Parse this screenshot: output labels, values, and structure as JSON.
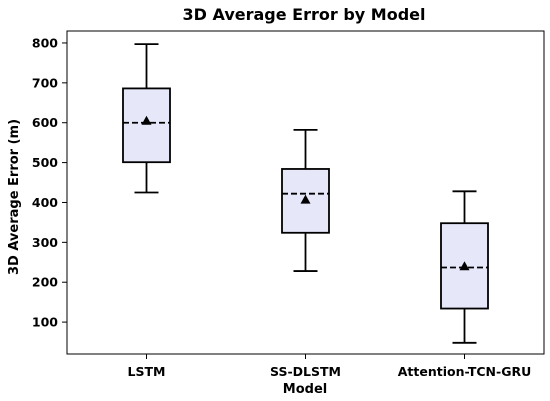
{
  "chart_data": {
    "type": "box",
    "title": "3D Average Error by Model",
    "xlabel": "Model",
    "ylabel": "3D Average Error (m)",
    "categories": [
      "LSTM",
      "SS-DLSTM",
      "Attention-TCN-GRU"
    ],
    "boxes": [
      {
        "name": "LSTM",
        "whisker_low": 425,
        "q1": 501,
        "median": 600,
        "q3": 686,
        "whisker_high": 797,
        "mean": 605
      },
      {
        "name": "SS-DLSTM",
        "whisker_low": 228,
        "q1": 324,
        "median": 422,
        "q3": 484,
        "whisker_high": 582,
        "mean": 407
      },
      {
        "name": "Attention-TCN-GRU",
        "whisker_low": 48,
        "q1": 134,
        "median": 237,
        "q3": 348,
        "whisker_high": 428,
        "mean": 240
      }
    ],
    "ylim": [
      20,
      830
    ],
    "yticks": [
      100,
      200,
      300,
      400,
      500,
      600,
      700,
      800
    ],
    "grid": false,
    "colors": {
      "box_fill": "#e6e8fa",
      "stroke": "#000000",
      "mean_marker": "#000000"
    }
  }
}
